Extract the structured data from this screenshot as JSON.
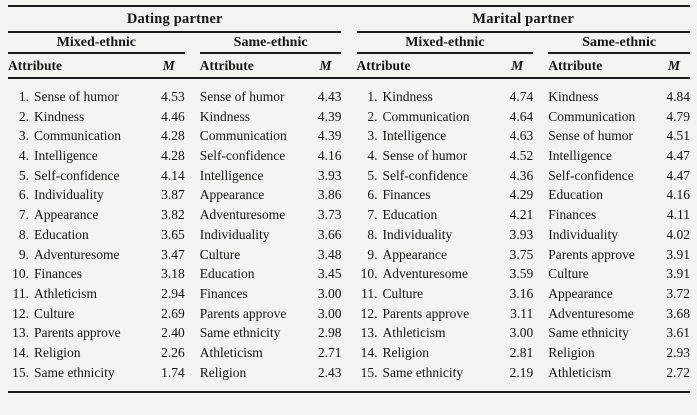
{
  "colors": {
    "background": "#f4f3f0",
    "text": "#151515",
    "rule": "#1a1a1a"
  },
  "table": {
    "groups": [
      {
        "label": "Dating partner",
        "subgroups": [
          {
            "label": "Mixed-ethnic",
            "col_attribute": "Attribute",
            "col_m": "M",
            "numbered": true,
            "rows": [
              {
                "num": "1.",
                "attribute": "Sense of humor",
                "m": "4.53"
              },
              {
                "num": "2.",
                "attribute": "Kindness",
                "m": "4.46"
              },
              {
                "num": "3.",
                "attribute": "Communication",
                "m": "4.28"
              },
              {
                "num": "4.",
                "attribute": "Intelligence",
                "m": "4.28"
              },
              {
                "num": "5.",
                "attribute": "Self-confidence",
                "m": "4.14"
              },
              {
                "num": "6.",
                "attribute": "Individuality",
                "m": "3.87"
              },
              {
                "num": "7.",
                "attribute": "Appearance",
                "m": "3.82"
              },
              {
                "num": "8.",
                "attribute": "Education",
                "m": "3.65"
              },
              {
                "num": "9.",
                "attribute": "Adventuresome",
                "m": "3.47"
              },
              {
                "num": "10.",
                "attribute": "Finances",
                "m": "3.18"
              },
              {
                "num": "11.",
                "attribute": "Athleticism",
                "m": "2.94"
              },
              {
                "num": "12.",
                "attribute": "Culture",
                "m": "2.69"
              },
              {
                "num": "13.",
                "attribute": "Parents approve",
                "m": "2.40"
              },
              {
                "num": "14.",
                "attribute": "Religion",
                "m": "2.26"
              },
              {
                "num": "15.",
                "attribute": "Same ethnicity",
                "m": "1.74"
              }
            ]
          },
          {
            "label": "Same-ethnic",
            "col_attribute": "Attribute",
            "col_m": "M",
            "numbered": false,
            "rows": [
              {
                "attribute": "Sense of humor",
                "m": "4.43"
              },
              {
                "attribute": "Kindness",
                "m": "4.39"
              },
              {
                "attribute": "Communication",
                "m": "4.39"
              },
              {
                "attribute": "Self-confidence",
                "m": "4.16"
              },
              {
                "attribute": "Intelligence",
                "m": "3.93"
              },
              {
                "attribute": "Appearance",
                "m": "3.86"
              },
              {
                "attribute": "Adventuresome",
                "m": "3.73"
              },
              {
                "attribute": "Individuality",
                "m": "3.66"
              },
              {
                "attribute": "Culture",
                "m": "3.48"
              },
              {
                "attribute": "Education",
                "m": "3.45"
              },
              {
                "attribute": "Finances",
                "m": "3.00"
              },
              {
                "attribute": "Parents approve",
                "m": "3.00"
              },
              {
                "attribute": "Same ethnicity",
                "m": "2.98"
              },
              {
                "attribute": "Athleticism",
                "m": "2.71"
              },
              {
                "attribute": "Religion",
                "m": "2.43"
              }
            ]
          }
        ]
      },
      {
        "label": "Marital partner",
        "subgroups": [
          {
            "label": "Mixed-ethnic",
            "col_attribute": "Attribute",
            "col_m": "M",
            "numbered": true,
            "rows": [
              {
                "num": "1.",
                "attribute": "Kindness",
                "m": "4.74"
              },
              {
                "num": "2.",
                "attribute": "Communication",
                "m": "4.64"
              },
              {
                "num": "3.",
                "attribute": "Intelligence",
                "m": "4.63"
              },
              {
                "num": "4.",
                "attribute": "Sense of humor",
                "m": "4.52"
              },
              {
                "num": "5.",
                "attribute": "Self-confidence",
                "m": "4.36"
              },
              {
                "num": "6.",
                "attribute": "Finances",
                "m": "4.29"
              },
              {
                "num": "7.",
                "attribute": "Education",
                "m": "4.21"
              },
              {
                "num": "8.",
                "attribute": "Individuality",
                "m": "3.93"
              },
              {
                "num": "9.",
                "attribute": "Appearance",
                "m": "3.75"
              },
              {
                "num": "10.",
                "attribute": "Adventuresome",
                "m": "3.59"
              },
              {
                "num": "11.",
                "attribute": "Culture",
                "m": "3.16"
              },
              {
                "num": "12.",
                "attribute": "Parents approve",
                "m": "3.11"
              },
              {
                "num": "13.",
                "attribute": "Athleticism",
                "m": "3.00"
              },
              {
                "num": "14.",
                "attribute": "Religion",
                "m": "2.81"
              },
              {
                "num": "15.",
                "attribute": "Same ethnicity",
                "m": "2.19"
              }
            ]
          },
          {
            "label": "Same-ethnic",
            "col_attribute": "Attribute",
            "col_m": "M",
            "numbered": false,
            "rows": [
              {
                "attribute": "Kindness",
                "m": "4.84"
              },
              {
                "attribute": "Communication",
                "m": "4.79"
              },
              {
                "attribute": "Sense of humor",
                "m": "4.51"
              },
              {
                "attribute": "Intelligence",
                "m": "4.47"
              },
              {
                "attribute": "Self-confidence",
                "m": "4.47"
              },
              {
                "attribute": "Education",
                "m": "4.16"
              },
              {
                "attribute": "Finances",
                "m": "4.11"
              },
              {
                "attribute": "Individuality",
                "m": "4.02"
              },
              {
                "attribute": "Parents approve",
                "m": "3.91"
              },
              {
                "attribute": "Culture",
                "m": "3.91"
              },
              {
                "attribute": "Appearance",
                "m": "3.72"
              },
              {
                "attribute": "Adventuresome",
                "m": "3.68"
              },
              {
                "attribute": "Same ethnicity",
                "m": "3.61"
              },
              {
                "attribute": "Religion",
                "m": "2.93"
              },
              {
                "attribute": "Athleticism",
                "m": "2.72"
              }
            ]
          }
        ]
      }
    ]
  }
}
